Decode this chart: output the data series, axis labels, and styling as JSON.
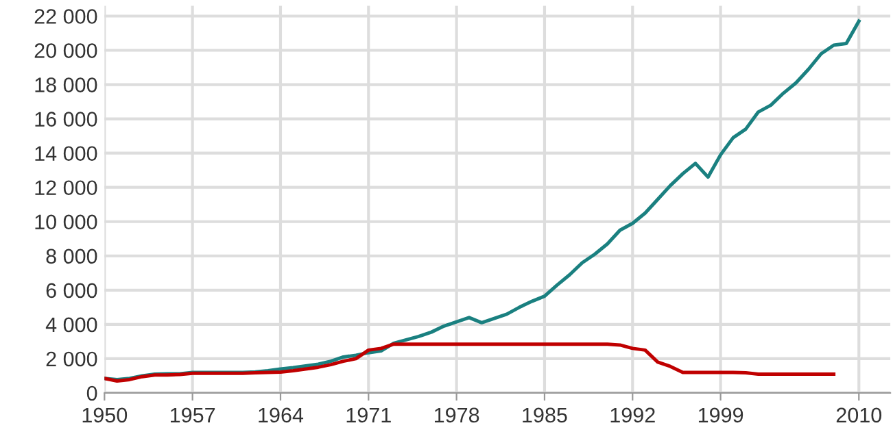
{
  "chart_data": {
    "type": "line",
    "x": [
      1950,
      1951,
      1952,
      1953,
      1954,
      1955,
      1956,
      1957,
      1958,
      1959,
      1960,
      1961,
      1962,
      1963,
      1964,
      1965,
      1966,
      1967,
      1968,
      1969,
      1970,
      1971,
      1972,
      1973,
      1974,
      1975,
      1976,
      1977,
      1978,
      1979,
      1980,
      1981,
      1982,
      1983,
      1984,
      1985,
      1986,
      1987,
      1988,
      1989,
      1990,
      1991,
      1992,
      1993,
      1994,
      1995,
      1996,
      1997,
      1998,
      1999,
      2000,
      2001,
      2002,
      2003,
      2004,
      2005,
      2006,
      2007,
      2008,
      2009,
      2010
    ],
    "series": [
      {
        "color": "#1a8080",
        "values": [
          850,
          780,
          850,
          1000,
          1100,
          1120,
          1120,
          1200,
          1200,
          1200,
          1200,
          1200,
          1230,
          1300,
          1400,
          1480,
          1580,
          1680,
          1850,
          2100,
          2200,
          2350,
          2450,
          2900,
          3100,
          3300,
          3550,
          3900,
          4150,
          4400,
          4100,
          4350,
          4600,
          5000,
          5350,
          5650,
          6300,
          6900,
          7600,
          8100,
          8700,
          9500,
          9900,
          10500,
          11300,
          12100,
          12800,
          13400,
          12600,
          13900,
          14900,
          15400,
          16400,
          16800,
          17500,
          18100,
          18900,
          19800,
          20300,
          20400,
          21700
        ]
      },
      {
        "color": "#c00000",
        "values": [
          850,
          700,
          780,
          950,
          1050,
          1050,
          1080,
          1150,
          1150,
          1150,
          1150,
          1150,
          1180,
          1200,
          1220,
          1300,
          1400,
          1500,
          1650,
          1850,
          2000,
          2500,
          2600,
          2850,
          2850,
          2850,
          2850,
          2850,
          2850,
          2850,
          2850,
          2850,
          2850,
          2850,
          2850,
          2850,
          2850,
          2850,
          2850,
          2850,
          2850,
          2800,
          2600,
          2500,
          1800,
          1550,
          1200,
          1200,
          1200,
          1200,
          1200,
          1180,
          1100,
          1100,
          1100,
          1100,
          1100,
          1100,
          1100,
          null,
          null
        ]
      }
    ],
    "xlim": [
      1950,
      2012.5
    ],
    "ylim": [
      0,
      22600
    ],
    "xticks": [
      1950,
      1957,
      1964,
      1971,
      1978,
      1985,
      1992,
      1999,
      2010
    ],
    "yticks": [
      0,
      {
        "value": 2000,
        "label": "2 000"
      },
      {
        "value": 4000,
        "label": "4 000"
      },
      {
        "value": 6000,
        "label": "6 000"
      },
      {
        "value": 8000,
        "label": "8 000"
      },
      {
        "value": 10000,
        "label": "10 000"
      },
      {
        "value": 12000,
        "label": "12 000"
      },
      {
        "value": 14000,
        "label": "14 000"
      },
      {
        "value": 16000,
        "label": "16 000"
      },
      {
        "value": 18000,
        "label": "18 000"
      },
      {
        "value": 20000,
        "label": "20 000"
      },
      {
        "value": 22000,
        "label": "22 000"
      }
    ],
    "grid": true,
    "marker": "none",
    "line_style": "solid",
    "legend": false
  }
}
